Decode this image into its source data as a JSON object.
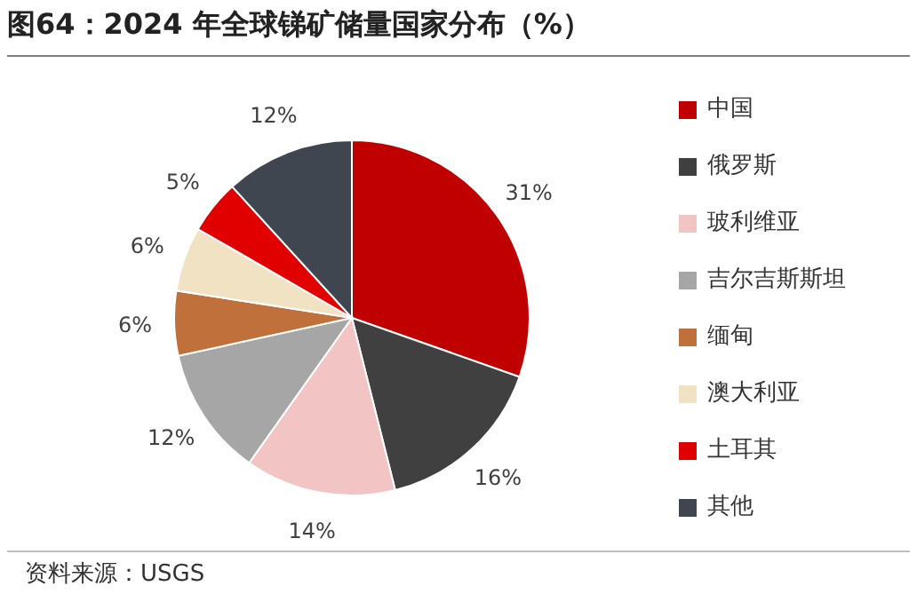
{
  "chart_data": {
    "type": "pie",
    "title": "图64：2024 年全球锑矿储量国家分布（%）",
    "categories": [
      "中国",
      "俄罗斯",
      "玻利维亚",
      "吉尔吉斯斯坦",
      "缅甸",
      "澳大利亚",
      "土耳其",
      "其他"
    ],
    "values": [
      31,
      16,
      14,
      12,
      6,
      6,
      5,
      12
    ],
    "value_labels": [
      "31%",
      "16%",
      "14%",
      "12%",
      "6%",
      "6%",
      "5%",
      "12%"
    ],
    "colors": [
      "#c00000",
      "#404040",
      "#f2c4c4",
      "#a6a6a6",
      "#c0703a",
      "#f2e2c4",
      "#e00000",
      "#3f4650"
    ],
    "legend": "right",
    "annotations": [
      "资料来源：USGS"
    ]
  }
}
